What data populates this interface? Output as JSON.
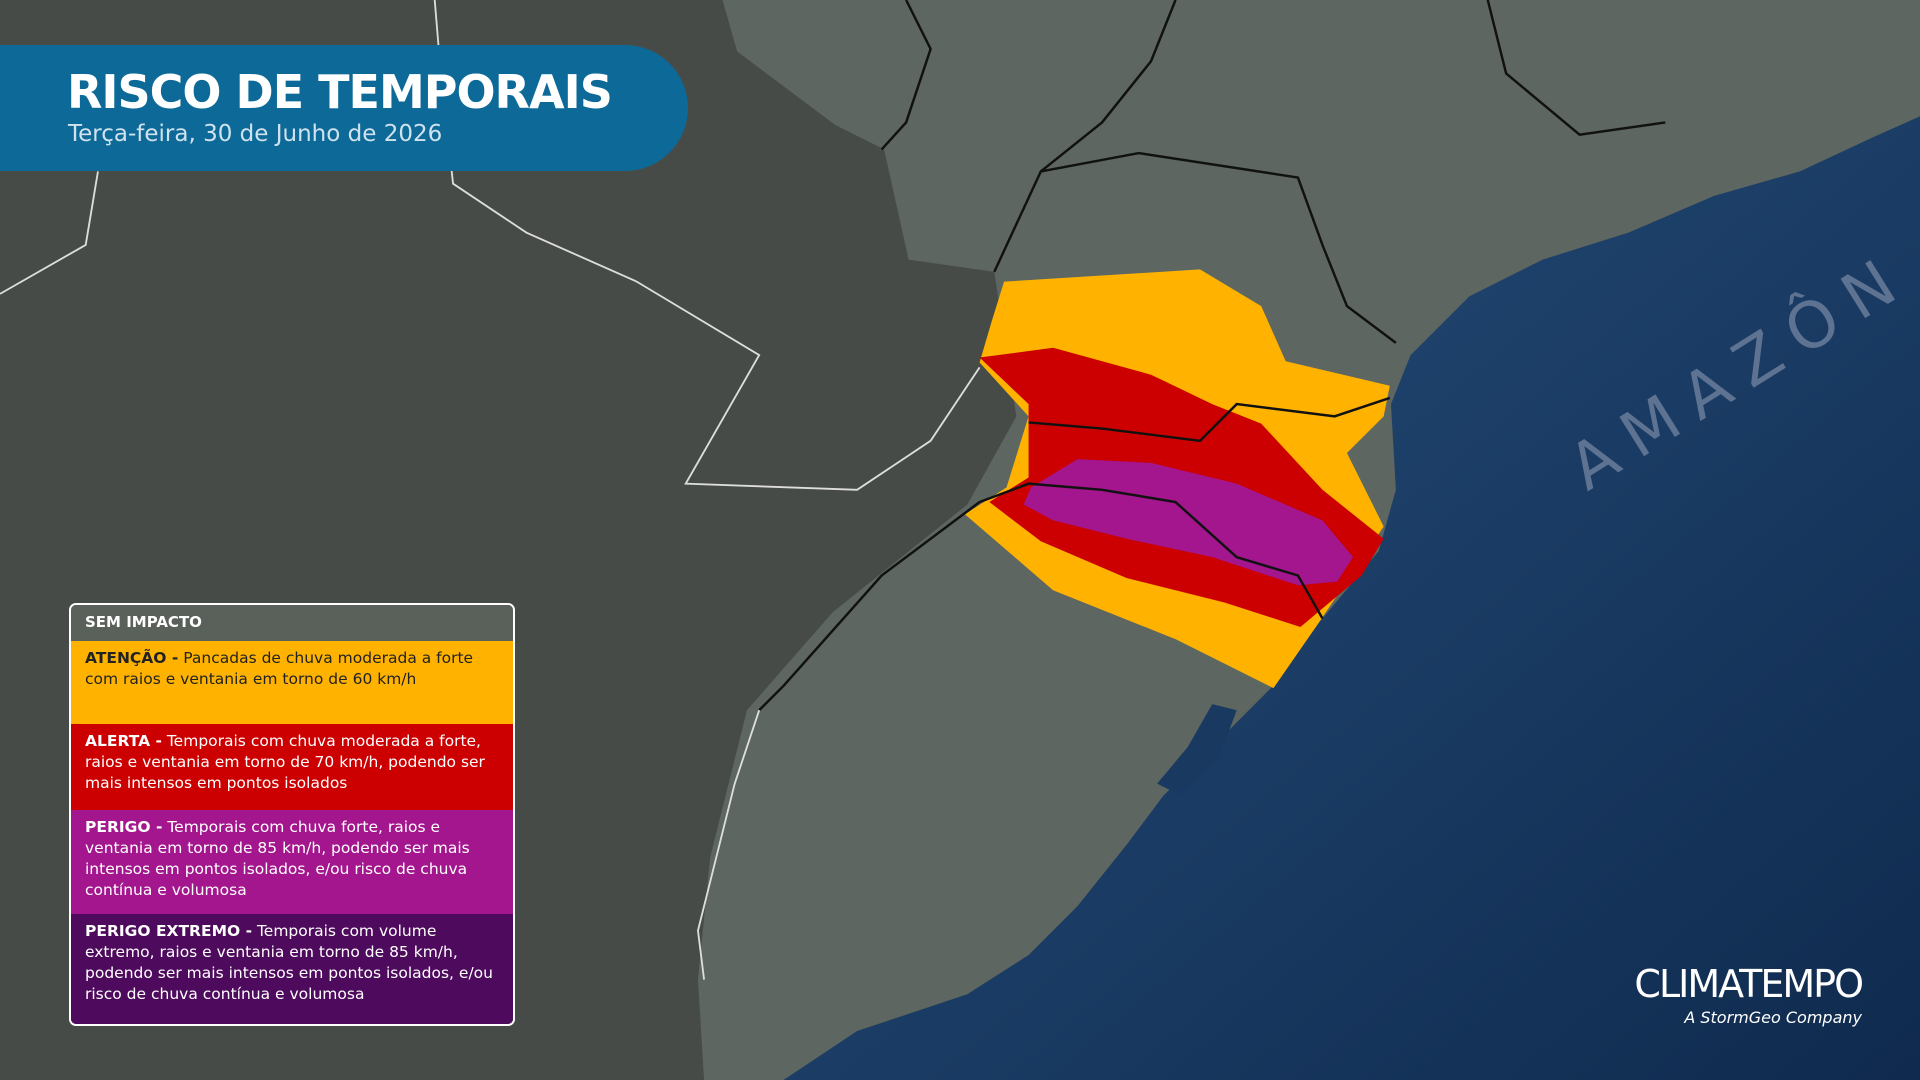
{
  "header": {
    "title": "RISCO DE TEMPORAIS",
    "subtitle": "Terça-feira, 30 de Junho de 2026"
  },
  "legend": {
    "title": "SEM IMPACTO",
    "items": [
      {
        "label": "ATENÇÃO -",
        "text": "Pancadas de chuva moderada a forte com raios e ventania em torno de 60 km/h"
      },
      {
        "label": "ALERTA -",
        "text": "Temporais com chuva moderada a forte, raios e ventania em torno de 70 km/h, podendo ser mais intensos em pontos isolados"
      },
      {
        "label": "PERIGO -",
        "text": "Temporais com chuva forte, raios e ventania em torno de 85 km/h, podendo ser mais intensos em pontos isolados, e/ou risco de chuva contínua e volumosa"
      },
      {
        "label": "PERIGO EXTREMO -",
        "text": "Temporais com volume extremo, raios e ventania em torno de 85 km/h, podendo ser mais intensos em pontos isolados, e/ou risco de chuva contínua e volumosa"
      }
    ]
  },
  "map": {
    "ocean_label": "AMAZÔN"
  },
  "logo": {
    "name": "CLIMATEMPO",
    "tagline": "A StormGeo Company"
  }
}
